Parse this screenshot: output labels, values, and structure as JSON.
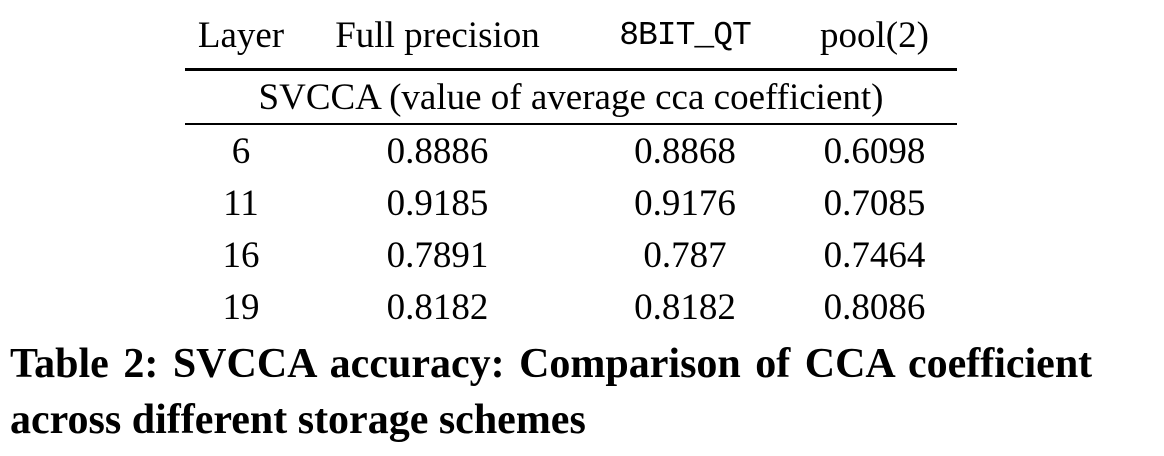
{
  "table": {
    "columns": [
      "Layer",
      "Full precision",
      "8BIT_QT",
      "pool(2)"
    ],
    "section_header": "SVCCA (value of average cca coefficient)",
    "rows": [
      [
        "6",
        "0.8886",
        "0.8868",
        "0.6098"
      ],
      [
        "11",
        "0.9185",
        "0.9176",
        "0.7085"
      ],
      [
        "16",
        "0.7891",
        "0.787",
        "0.7464"
      ],
      [
        "19",
        "0.8182",
        "0.8182",
        "0.8086"
      ]
    ]
  },
  "caption": {
    "line1": "Table 2: SVCCA accuracy: Comparison of CCA coefficient",
    "line2": "across different storage schemes"
  },
  "colors": {
    "text": "#000000",
    "background": "#ffffff",
    "rule": "#000000"
  }
}
